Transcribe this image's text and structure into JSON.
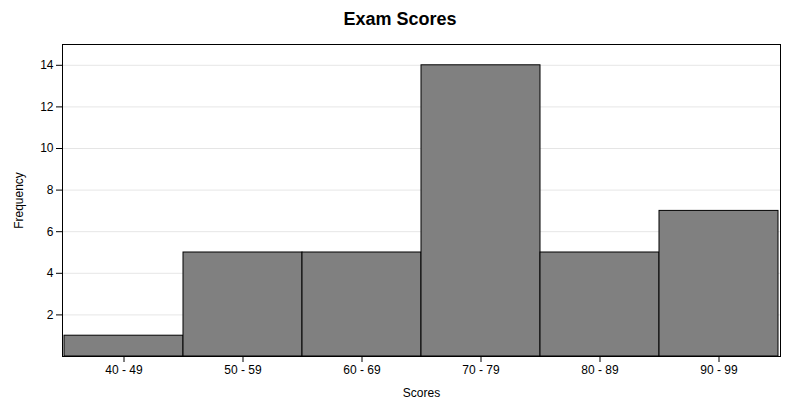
{
  "chart_data": {
    "type": "bar",
    "title": "Exam Scores",
    "xlabel": "Scores",
    "ylabel": "Frequency",
    "categories": [
      "40 - 49",
      "50 - 59",
      "60 - 69",
      "70 - 79",
      "80 - 89",
      "90 - 99"
    ],
    "values": [
      1,
      5,
      5,
      14,
      5,
      7
    ],
    "color": "#808080",
    "ylim": [
      0,
      15
    ],
    "yticks": [
      2,
      4,
      6,
      8,
      10,
      12,
      14
    ],
    "grid": true
  }
}
